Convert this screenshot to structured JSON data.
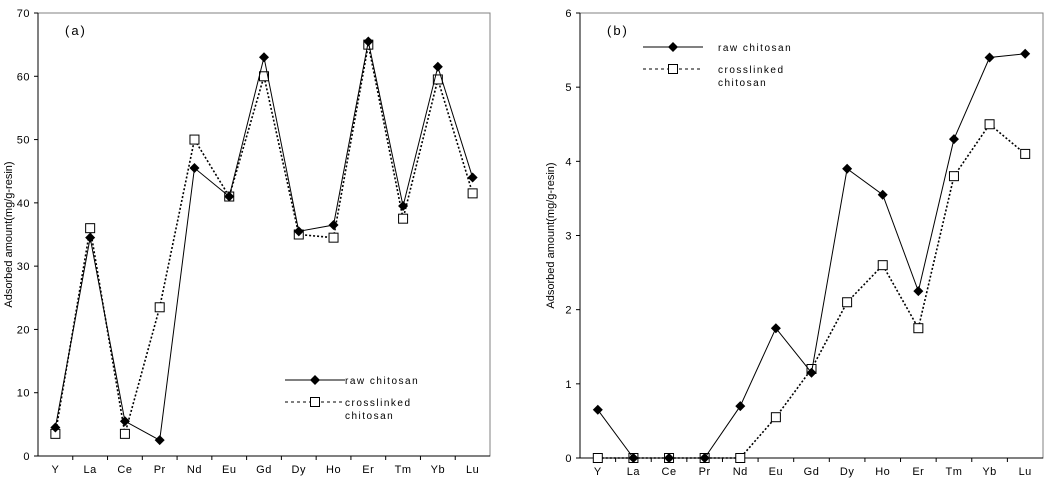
{
  "chart_data": [
    {
      "type": "line",
      "panel_label": "(a)",
      "ylabel": "Adsorbed amount(mg/g-resin)",
      "xlabel": "",
      "categories": [
        "Y",
        "La",
        "Ce",
        "Pr",
        "Nd",
        "Eu",
        "Gd",
        "Dy",
        "Ho",
        "Er",
        "Tm",
        "Yb",
        "Lu"
      ],
      "ylim": [
        0,
        70
      ],
      "yticks": [
        0,
        10,
        20,
        30,
        40,
        50,
        60,
        70
      ],
      "legend_position": "lower-right",
      "series": [
        {
          "name": "raw chitosan",
          "marker": "filled-diamond",
          "line": "solid",
          "values": [
            4.5,
            34.5,
            5.5,
            2.5,
            45.5,
            41.0,
            63.0,
            35.5,
            36.5,
            65.5,
            39.5,
            61.5,
            44.0
          ]
        },
        {
          "name": "crosslinked chitosan",
          "marker": "open-square",
          "line": "dashed",
          "values": [
            3.5,
            36.0,
            3.5,
            23.5,
            50.0,
            41.0,
            60.0,
            35.0,
            34.5,
            65.0,
            37.5,
            59.5,
            41.5
          ]
        }
      ]
    },
    {
      "type": "line",
      "panel_label": "(b)",
      "ylabel": "Adsorbed amount(mg/g-resin)",
      "xlabel": "",
      "categories": [
        "Y",
        "La",
        "Ce",
        "Pr",
        "Nd",
        "Eu",
        "Gd",
        "Dy",
        "Ho",
        "Er",
        "Tm",
        "Yb",
        "Lu"
      ],
      "ylim": [
        0,
        6
      ],
      "yticks": [
        0,
        1,
        2,
        3,
        4,
        5,
        6
      ],
      "legend_position": "top-left",
      "series": [
        {
          "name": "raw chitosan",
          "marker": "filled-diamond",
          "line": "solid",
          "values": [
            0.65,
            0.0,
            0.0,
            0.0,
            0.7,
            1.75,
            1.15,
            3.9,
            3.55,
            2.25,
            4.3,
            5.4,
            5.45
          ]
        },
        {
          "name": "crosslinked chitosan",
          "marker": "open-square",
          "line": "dashed",
          "values": [
            0.0,
            0.0,
            0.0,
            0.0,
            0.0,
            0.55,
            1.2,
            2.1,
            2.6,
            1.75,
            3.8,
            4.5,
            4.1
          ]
        }
      ]
    }
  ]
}
